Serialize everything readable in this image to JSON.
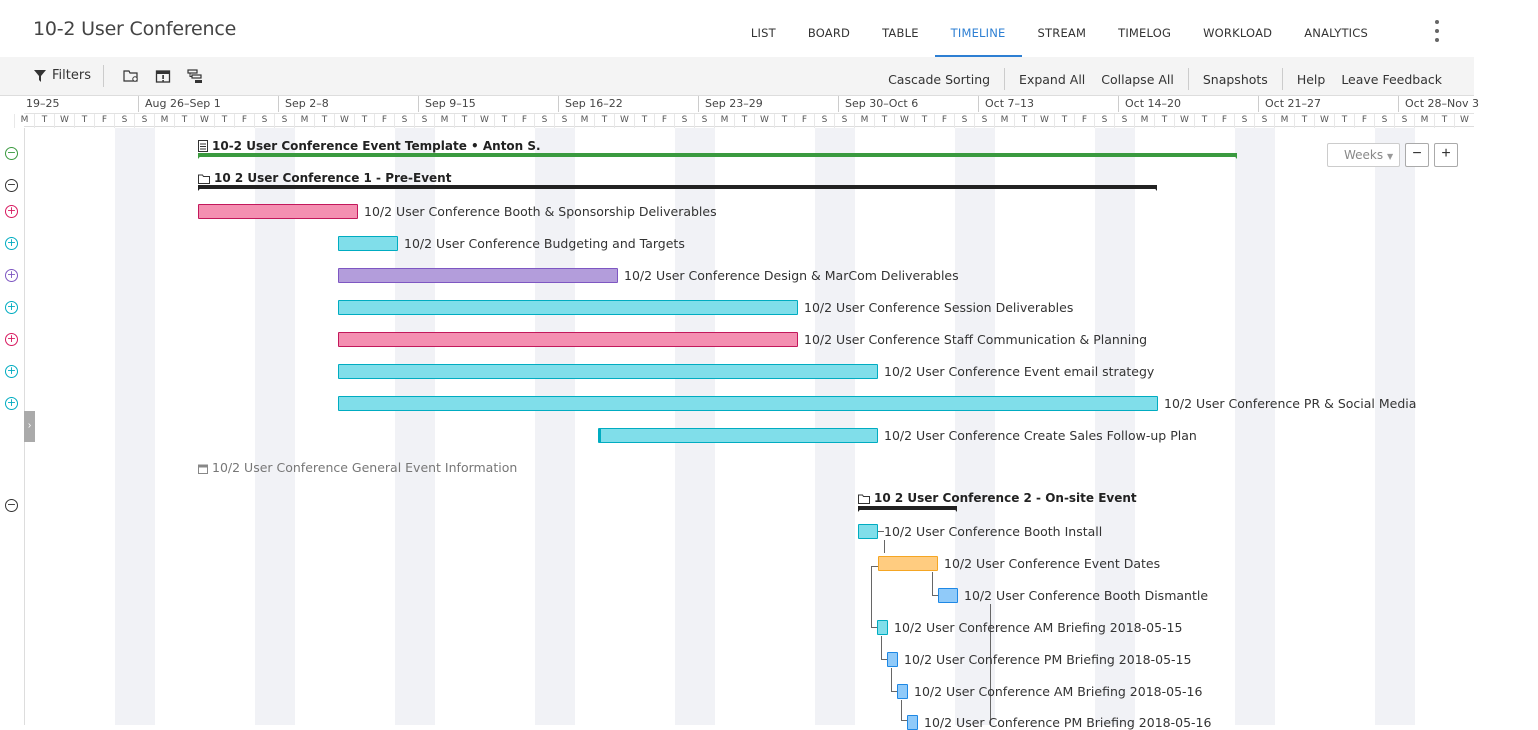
{
  "header": {
    "title": "10-2 User Conference",
    "tabs": [
      {
        "label": "LIST",
        "active": false
      },
      {
        "label": "BOARD",
        "active": false
      },
      {
        "label": "TABLE",
        "active": false
      },
      {
        "label": "TIMELINE",
        "active": true
      },
      {
        "label": "STREAM",
        "active": false
      },
      {
        "label": "TIMELOG",
        "active": false
      },
      {
        "label": "WORKLOAD",
        "active": false
      },
      {
        "label": "ANALYTICS",
        "active": false
      }
    ],
    "more_icon": "kebab-icon"
  },
  "toolbar": {
    "filters_label": "Filters",
    "icons": [
      "folder-settings-icon",
      "calendar-alert-icon",
      "hierarchy-icon"
    ],
    "cascade_sorting": "Cascade Sorting",
    "expand_all": "Expand All",
    "collapse_all": "Collapse All",
    "snapshots": "Snapshots",
    "help": "Help",
    "leave_feedback": "Leave Feedback"
  },
  "timeline": {
    "weeks": [
      "19–25",
      "Aug 26–Sep 1",
      "Sep 2–8",
      "Sep 9–15",
      "Sep 16–22",
      "Sep 23–29",
      "Sep 30–Oct 6",
      "Oct 7–13",
      "Oct 14–20",
      "Oct 21–27",
      "Oct 28–Nov 3"
    ],
    "day_letters": [
      "M",
      "T",
      "W",
      "T",
      "F",
      "S",
      "S"
    ],
    "zoom": {
      "scale": "Weeks",
      "minus": "−",
      "plus": "+"
    }
  },
  "rows": [
    {
      "label": "10-2 User Conference Event Template • Anton S.",
      "type": "project",
      "color": "#3a9a3f"
    },
    {
      "label": "10 2 User Conference 1 - Pre-Event",
      "type": "folder",
      "color": "#222222"
    },
    {
      "label": "10/2 User Conference Booth & Sponsorship Deliverables",
      "type": "task",
      "color": "#f48fb1"
    },
    {
      "label": "10/2 User Conference Budgeting and Targets",
      "type": "task",
      "color": "#80deea"
    },
    {
      "label": "10/2 User Conference Design & MarCom Deliverables",
      "type": "task",
      "color": "#b39ddb"
    },
    {
      "label": "10/2 User Conference Session Deliverables",
      "type": "task",
      "color": "#80deea"
    },
    {
      "label": "10/2 User Conference Staff Communication & Planning",
      "type": "task",
      "color": "#f48fb1"
    },
    {
      "label": "10/2 User Conference Event email strategy",
      "type": "task",
      "color": "#80deea"
    },
    {
      "label": "10/2 User Conference PR & Social Media",
      "type": "task",
      "color": "#80deea"
    },
    {
      "label": "10/2 User Conference Create Sales Follow-up Plan",
      "type": "task",
      "color": "#80deea"
    },
    {
      "label": "10/2 User Conference General Event Information",
      "type": "unscheduled"
    },
    {
      "label": "10 2 User Conference 2 - On-site Event",
      "type": "folder",
      "color": "#222222"
    },
    {
      "label": "10/2 User Conference Booth Install",
      "type": "task",
      "color": "#80deea"
    },
    {
      "label": "10/2 User Conference Event Dates",
      "type": "task",
      "color": "#ffcc80"
    },
    {
      "label": "10/2 User Conference Booth Dismantle",
      "type": "task",
      "color": "#90caf9"
    },
    {
      "label": "10/2 User Conference AM Briefing 2018-05-15",
      "type": "task",
      "color": "#80deea"
    },
    {
      "label": "10/2 User Conference PM Briefing 2018-05-15",
      "type": "task",
      "color": "#90caf9"
    },
    {
      "label": "10/2 User Conference AM Briefing 2018-05-16",
      "type": "task",
      "color": "#90caf9"
    },
    {
      "label": "10/2 User Conference PM Briefing 2018-05-16",
      "type": "task",
      "color": "#90caf9"
    }
  ]
}
